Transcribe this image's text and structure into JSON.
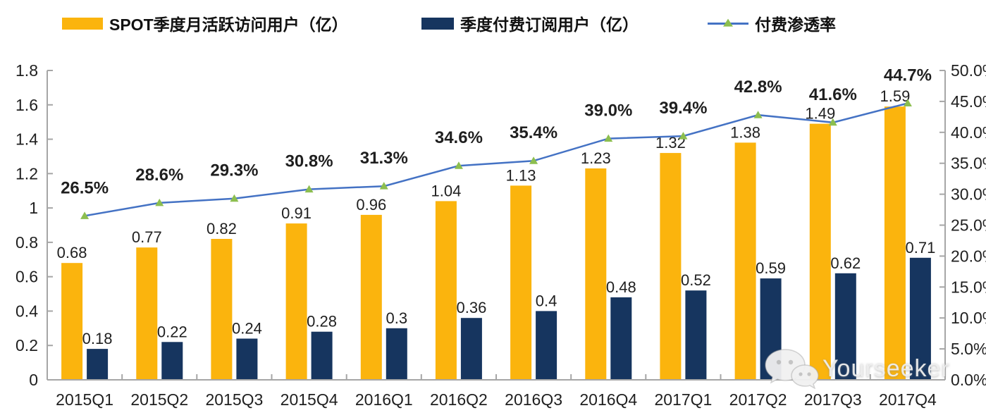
{
  "colors": {
    "bar_mau": "#FBB40D",
    "bar_sub": "#16355F",
    "line": "#4472C4",
    "marker": "#8CBE4F",
    "axis": "#A6A6A6",
    "label_text": "#1f1f1f"
  },
  "watermark": {
    "text": "Yourseeker",
    "icon": "wechat-icon"
  },
  "chart_data": {
    "type": "combo-bar-line",
    "categories": [
      "2015Q1",
      "2015Q2",
      "2015Q3",
      "2015Q4",
      "2016Q1",
      "2016Q2",
      "2016Q3",
      "2016Q4",
      "2017Q1",
      "2017Q2",
      "2017Q3",
      "2017Q4"
    ],
    "series": [
      {
        "name": "SPOT季度月活跃访问用户（亿）",
        "type": "bar",
        "axis": "left",
        "color": "#FBB40D",
        "values": [
          0.68,
          0.77,
          0.82,
          0.91,
          0.96,
          1.04,
          1.13,
          1.23,
          1.32,
          1.38,
          1.49,
          1.59
        ],
        "labels": [
          "0.68",
          "0.77",
          "0.82",
          "0.91",
          "0.96",
          "1.04",
          "1.13",
          "1.23",
          "1.32",
          "1.38",
          "1.49",
          "1.59"
        ]
      },
      {
        "name": "季度付费订阅用户（亿）",
        "type": "bar",
        "axis": "left",
        "color": "#16355F",
        "values": [
          0.18,
          0.22,
          0.24,
          0.28,
          0.3,
          0.36,
          0.4,
          0.48,
          0.52,
          0.59,
          0.62,
          0.71
        ],
        "labels": [
          "0.18",
          "0.22",
          "0.24",
          "0.28",
          "0.3",
          "0.36",
          "0.4",
          "0.48",
          "0.52",
          "0.59",
          "0.62",
          "0.71"
        ]
      },
      {
        "name": "付费渗透率",
        "type": "line",
        "axis": "right",
        "color": "#4472C4",
        "marker_color": "#8CBE4F",
        "values": [
          26.5,
          28.6,
          29.3,
          30.8,
          31.3,
          34.6,
          35.4,
          39.0,
          39.4,
          42.8,
          41.6,
          44.7
        ],
        "labels": [
          "26.5%",
          "28.6%",
          "29.3%",
          "30.8%",
          "31.3%",
          "34.6%",
          "35.4%",
          "39.0%",
          "39.4%",
          "42.8%",
          "41.6%",
          "44.7%"
        ]
      }
    ],
    "left_axis": {
      "min": 0,
      "max": 1.8,
      "step": 0.2,
      "tick_labels": [
        "0",
        "0.2",
        "0.4",
        "0.6",
        "0.8",
        "1",
        "1.2",
        "1.4",
        "1.6",
        "1.8"
      ]
    },
    "right_axis": {
      "min": 0,
      "max": 50,
      "step": 5,
      "tick_labels": [
        "0.0%",
        "5.0%",
        "10.0%",
        "15.0%",
        "20.0%",
        "25.0%",
        "30.0%",
        "35.0%",
        "40.0%",
        "45.0%",
        "50.0%"
      ]
    },
    "grid": false,
    "legend_position": "top"
  }
}
